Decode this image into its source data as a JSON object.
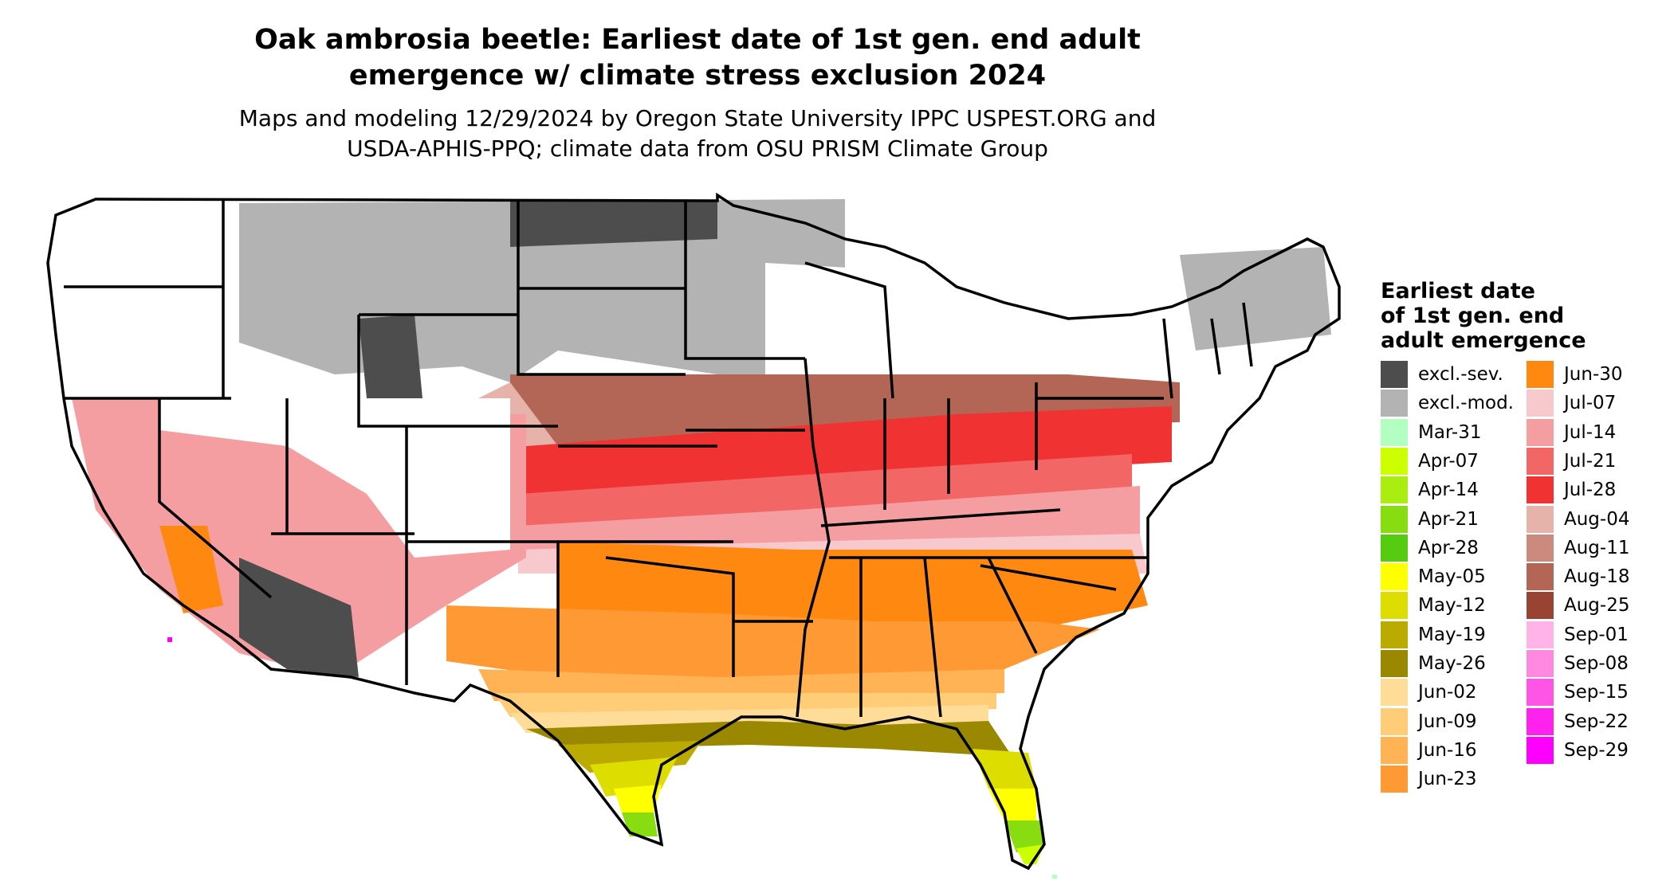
{
  "title": [
    "Oak ambrosia beetle: Earliest date of 1st gen. end adult",
    "emergence w/ climate stress exclusion 2024"
  ],
  "subtitle": [
    "Maps and modeling 12/29/2024 by Oregon State University IPPC USPEST.ORG and",
    "USDA-APHIS-PPQ; climate data from OSU PRISM Climate Group"
  ],
  "legend": {
    "title": [
      "Earliest date",
      "of 1st gen. end",
      "adult emergence"
    ],
    "column1": [
      {
        "label": "excl.-sev.",
        "color": "#4d4d4d"
      },
      {
        "label": "excl.-mod.",
        "color": "#b3b3b3"
      },
      {
        "label": "Mar-31",
        "color": "#b3ffc2"
      },
      {
        "label": "Apr-07",
        "color": "#ccff00"
      },
      {
        "label": "Apr-14",
        "color": "#aaee11"
      },
      {
        "label": "Apr-21",
        "color": "#88dd11"
      },
      {
        "label": "Apr-28",
        "color": "#55cc11"
      },
      {
        "label": "May-05",
        "color": "#ffff00"
      },
      {
        "label": "May-12",
        "color": "#dddd00"
      },
      {
        "label": "May-19",
        "color": "#bbaa00"
      },
      {
        "label": "May-26",
        "color": "#998800"
      },
      {
        "label": "Jun-02",
        "color": "#ffdd99"
      },
      {
        "label": "Jun-09",
        "color": "#ffcc77"
      },
      {
        "label": "Jun-16",
        "color": "#ffb355"
      },
      {
        "label": "Jun-23",
        "color": "#ff9933"
      }
    ],
    "column2": [
      {
        "label": "Jun-30",
        "color": "#ff8811"
      },
      {
        "label": "Jul-07",
        "color": "#f7c8cc"
      },
      {
        "label": "Jul-14",
        "color": "#f59ea2"
      },
      {
        "label": "Jul-21",
        "color": "#f26666"
      },
      {
        "label": "Jul-28",
        "color": "#f03232"
      },
      {
        "label": "Aug-04",
        "color": "#e6b3aa"
      },
      {
        "label": "Aug-11",
        "color": "#cc8a7e"
      },
      {
        "label": "Aug-18",
        "color": "#b36655"
      },
      {
        "label": "Aug-25",
        "color": "#994433"
      },
      {
        "label": "Sep-01",
        "color": "#ffb3e6"
      },
      {
        "label": "Sep-08",
        "color": "#ff88e0"
      },
      {
        "label": "Sep-15",
        "color": "#ff55e6"
      },
      {
        "label": "Sep-22",
        "color": "#ff22ee"
      },
      {
        "label": "Sep-29",
        "color": "#ff00ff"
      }
    ]
  }
}
